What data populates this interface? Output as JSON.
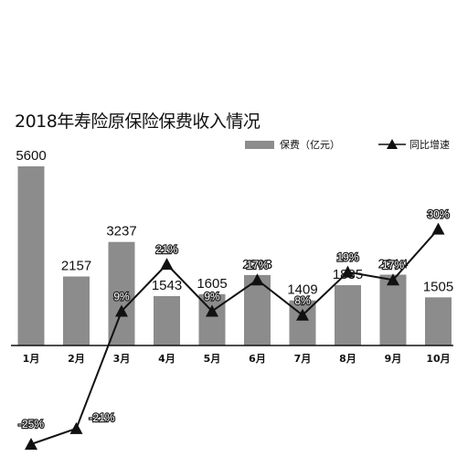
{
  "chart_data": {
    "type": "bar",
    "title": "2018年寿险原保险保费收入情况",
    "categories": [
      "1月",
      "2月",
      "3月",
      "4月",
      "5月",
      "6月",
      "7月",
      "8月",
      "9月",
      "10月"
    ],
    "series": [
      {
        "name": "保费（亿元）",
        "type": "bar",
        "values": [
          5600,
          2157,
          3237,
          1543,
          1605,
          2203,
          1409,
          1885,
          2214,
          1505
        ],
        "labels": [
          "5600",
          "2157",
          "3237",
          "1543",
          "1605",
          "2203",
          "1409",
          "1885",
          "2214",
          "1505"
        ]
      },
      {
        "name": "同比增速",
        "type": "line",
        "marker": "triangle",
        "values": [
          -25,
          -21,
          9,
          21,
          9,
          17,
          8,
          19,
          17,
          30
        ],
        "labels": [
          "-25%",
          "-21%",
          "9%",
          "21%",
          "9%",
          "17%",
          "8%",
          "19%",
          "17%",
          "30%"
        ]
      }
    ],
    "legend_position": "top-right",
    "grid": false,
    "colors": {
      "bar": "#8c8c8c",
      "line": "#111111",
      "axis": "#111111"
    }
  }
}
